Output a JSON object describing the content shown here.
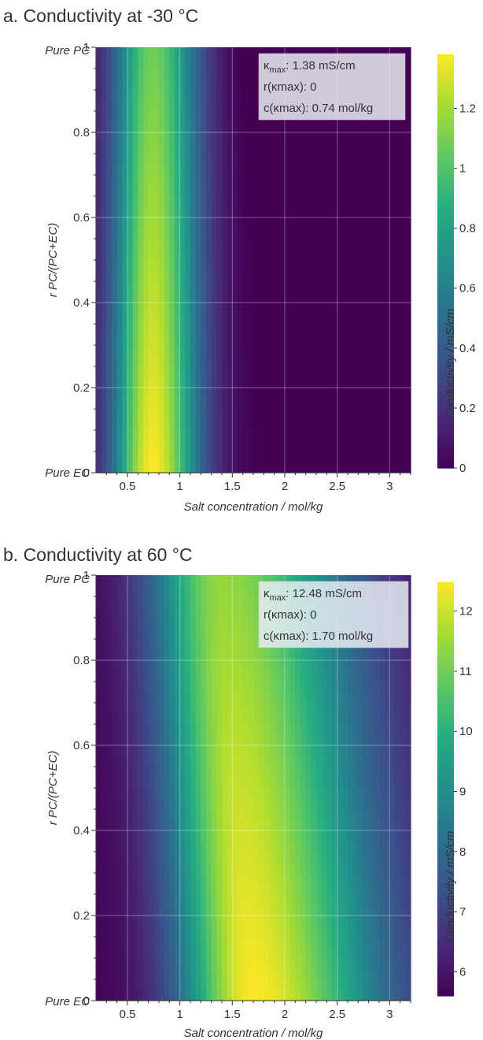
{
  "chart_data": [
    {
      "type": "heatmap",
      "title": "a. Conductivity at -30 °C",
      "xlabel": "Salt concentration / mol/kg",
      "ylabel": "r  PC/(PC+EC)",
      "colorbar_label": "Conductivity / mS/cm",
      "colormap": "viridis",
      "xlim": [
        0.2,
        3.2
      ],
      "ylim": [
        0,
        1
      ],
      "zlim": [
        0,
        1.38
      ],
      "x_ticks": [
        {
          "value": 0.5,
          "label": "0.5"
        },
        {
          "value": 1,
          "label": "1"
        },
        {
          "value": 1.5,
          "label": "1.5"
        },
        {
          "value": 2,
          "label": "2"
        },
        {
          "value": 2.5,
          "label": "2.5"
        },
        {
          "value": 3,
          "label": "3"
        }
      ],
      "y_ticks": [
        {
          "value": 0,
          "label": "0"
        },
        {
          "value": 0.2,
          "label": "0.2"
        },
        {
          "value": 0.4,
          "label": "0.4"
        },
        {
          "value": 0.6,
          "label": "0.6"
        },
        {
          "value": 0.8,
          "label": "0.8"
        },
        {
          "value": 1,
          "label": "1"
        }
      ],
      "y_end_labels": {
        "bottom": "Pure EC",
        "top": "Pure PC"
      },
      "colorbar_ticks": [
        {
          "value": 0,
          "label": "0"
        },
        {
          "value": 0.2,
          "label": "0.2"
        },
        {
          "value": 0.4,
          "label": "0.4"
        },
        {
          "value": 0.6,
          "label": "0.6"
        },
        {
          "value": 0.8,
          "label": "0.8"
        },
        {
          "value": 1,
          "label": "1"
        },
        {
          "value": 1.2,
          "label": "1.2"
        }
      ],
      "peak": {
        "x": 0.74,
        "y": 0,
        "value": 1.38
      },
      "field_model": {
        "kind": "solvent-blend peak with cutoff",
        "peak_x_at_y1": 0.74,
        "width_left": 0.38,
        "width_right": 0.45,
        "pc_factor": 0.22,
        "cutoff_x_at_y0": 1.72,
        "cutoff_x_at_y1": 1.5
      },
      "annotation": {
        "kmax_prefix": "κ",
        "kmax_sub": "max",
        "kmax_value": ": 1.38 mS/cm",
        "r_line": "r(κmax): 0",
        "c_line": "c(κmax): 0.74 mol/kg"
      }
    },
    {
      "type": "heatmap",
      "title": "b. Conductivity at 60 °C",
      "xlabel": "Salt concentration / mol/kg",
      "ylabel": "r  PC/(PC+EC)",
      "colorbar_label": "Conductivity / mS/cm",
      "colormap": "viridis",
      "xlim": [
        0.2,
        3.2
      ],
      "ylim": [
        0,
        1
      ],
      "zlim": [
        5.6,
        12.48
      ],
      "x_ticks": [
        {
          "value": 0.5,
          "label": "0.5"
        },
        {
          "value": 1,
          "label": "1"
        },
        {
          "value": 1.5,
          "label": "1.5"
        },
        {
          "value": 2,
          "label": "2"
        },
        {
          "value": 2.5,
          "label": "2.5"
        },
        {
          "value": 3,
          "label": "3"
        }
      ],
      "y_ticks": [
        {
          "value": 0,
          "label": "0"
        },
        {
          "value": 0.2,
          "label": "0.2"
        },
        {
          "value": 0.4,
          "label": "0.4"
        },
        {
          "value": 0.6,
          "label": "0.6"
        },
        {
          "value": 0.8,
          "label": "0.8"
        },
        {
          "value": 1,
          "label": "1"
        }
      ],
      "y_end_labels": {
        "bottom": "Pure EC",
        "top": "Pure PC"
      },
      "colorbar_ticks": [
        {
          "value": 6,
          "label": "6"
        },
        {
          "value": 7,
          "label": "7"
        },
        {
          "value": 8,
          "label": "8"
        },
        {
          "value": 9,
          "label": "9"
        },
        {
          "value": 10,
          "label": "10"
        },
        {
          "value": 11,
          "label": "11"
        },
        {
          "value": 12,
          "label": "12"
        }
      ],
      "peak": {
        "x": 1.7,
        "y": 0,
        "value": 12.48
      },
      "field_model": {
        "kind": "broad peak shifting to low concentration at high PC",
        "peak_x_at_y1": 1.4,
        "width_left": 0.7,
        "width_right": 1.25,
        "pc_factor": 0.16
      },
      "annotation": {
        "kmax_prefix": "κ",
        "kmax_sub": "max",
        "kmax_value": ": 12.48 mS/cm",
        "r_line": "r(κmax): 0",
        "c_line": "c(κmax): 1.70 mol/kg"
      }
    }
  ]
}
